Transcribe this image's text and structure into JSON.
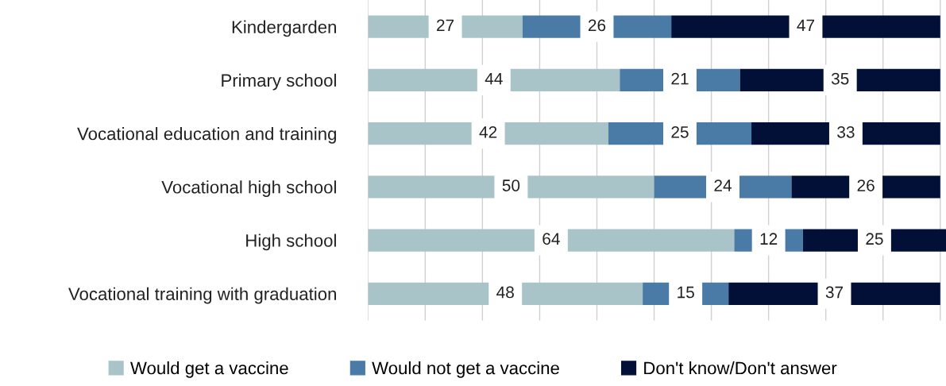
{
  "chart_data": {
    "type": "bar",
    "orientation": "horizontal",
    "stacked": true,
    "data_labels": true,
    "categories": [
      "Kindergarden",
      "Primary school",
      "Vocational education and training",
      "Vocational high school",
      "High school",
      "Vocational training with graduation"
    ],
    "series": [
      {
        "name": "Would get a vaccine",
        "color": "#a8c4c8",
        "values": [
          27,
          44,
          42,
          50,
          64,
          48
        ]
      },
      {
        "name": "Would not get a vaccine",
        "color": "#4a7ba6",
        "values": [
          26,
          21,
          25,
          24,
          12,
          15
        ]
      },
      {
        "name": "Don't know/Don't answer",
        "color": "#021038",
        "values": [
          47,
          35,
          33,
          26,
          25,
          37
        ]
      }
    ],
    "xlim": [
      0,
      101
    ],
    "xticks": [
      {
        "value": 0,
        "label": null
      },
      {
        "value": 10,
        "label": null
      },
      {
        "value": 20,
        "label": null
      },
      {
        "value": 30,
        "label": null
      },
      {
        "value": 40,
        "label": null
      },
      {
        "value": 50,
        "label": null
      },
      {
        "value": 60,
        "label": null
      },
      {
        "value": 70,
        "label": null
      },
      {
        "value": 80,
        "label": null
      },
      {
        "value": 90,
        "label": null
      },
      {
        "value": 100,
        "label": null
      }
    ],
    "tick_labels": "y",
    "grid": "x",
    "legend": "bottom"
  }
}
